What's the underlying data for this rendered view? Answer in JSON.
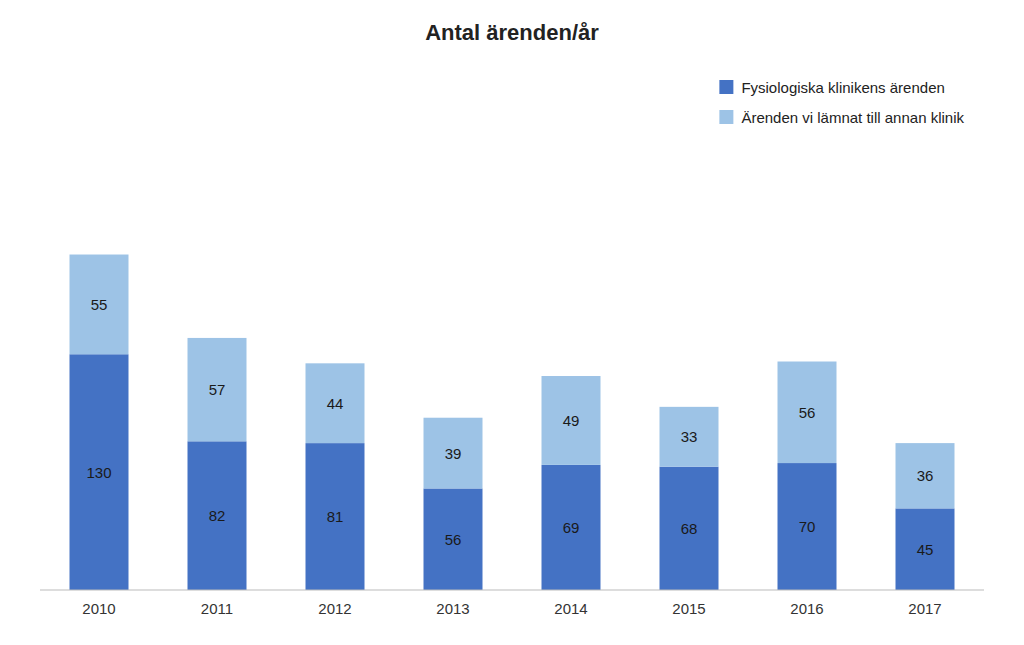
{
  "chart_data": {
    "type": "bar",
    "title": "Antal ärenden/år",
    "stacked": true,
    "categories": [
      "2010",
      "2011",
      "2012",
      "2013",
      "2014",
      "2015",
      "2016",
      "2017"
    ],
    "series": [
      {
        "name": "Fysiologiska klinikens ärenden",
        "color": "#4472C4",
        "values": [
          130,
          82,
          81,
          56,
          69,
          68,
          70,
          45
        ]
      },
      {
        "name": "Ärenden vi lämnat till annan klinik",
        "color": "#9DC3E6",
        "values": [
          55,
          57,
          44,
          39,
          49,
          33,
          56,
          36
        ]
      }
    ],
    "ylim": [
      0,
      286.75
    ],
    "tick_labels": "x",
    "grid": false,
    "legend": "upper right",
    "data_labels": true
  }
}
